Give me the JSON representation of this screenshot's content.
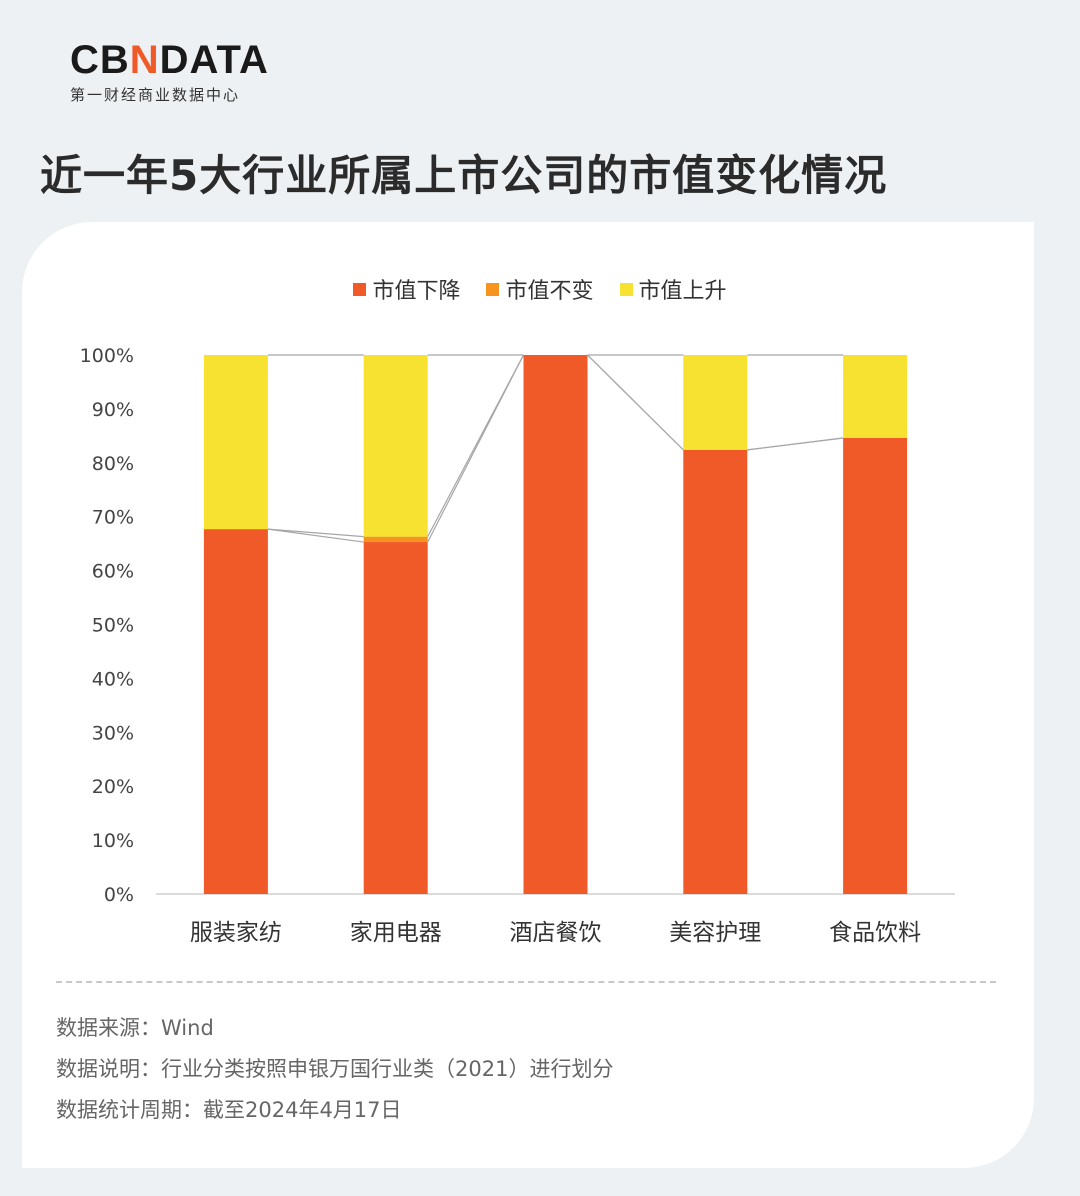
{
  "brand": {
    "logo_left": "CB",
    "logo_accent": "N",
    "logo_right": "DATA",
    "subtitle": "第一财经商业数据中心"
  },
  "title": "近一年5大行业所属上市公司的市值变化情况",
  "chart_data": {
    "type": "bar",
    "stacked": true,
    "percent": true,
    "categories": [
      "服装家纺",
      "家用电器",
      "酒店餐饮",
      "美容护理",
      "食品饮料"
    ],
    "series": [
      {
        "name": "市值下降",
        "color": "#f05a28",
        "values": [
          67.7,
          65.3,
          100,
          82.4,
          84.6
        ]
      },
      {
        "name": "市值不变",
        "color": "#f7941d",
        "values": [
          0,
          1.0,
          0,
          0,
          0
        ]
      },
      {
        "name": "市值上升",
        "color": "#f7e231",
        "values": [
          32.3,
          33.7,
          0,
          17.6,
          15.4
        ]
      }
    ],
    "ylim": [
      0,
      100
    ],
    "yticks": [
      "0%",
      "10%",
      "20%",
      "30%",
      "40%",
      "50%",
      "60%",
      "70%",
      "80%",
      "90%",
      "100%"
    ],
    "legend": "top-center",
    "grid": false,
    "series_lines": true
  },
  "notes": {
    "source": "数据来源：Wind",
    "description": "数据说明：行业分类按照申银万国行业类（2021）进行划分",
    "period": "数据统计周期：截至2024年4月17日"
  }
}
